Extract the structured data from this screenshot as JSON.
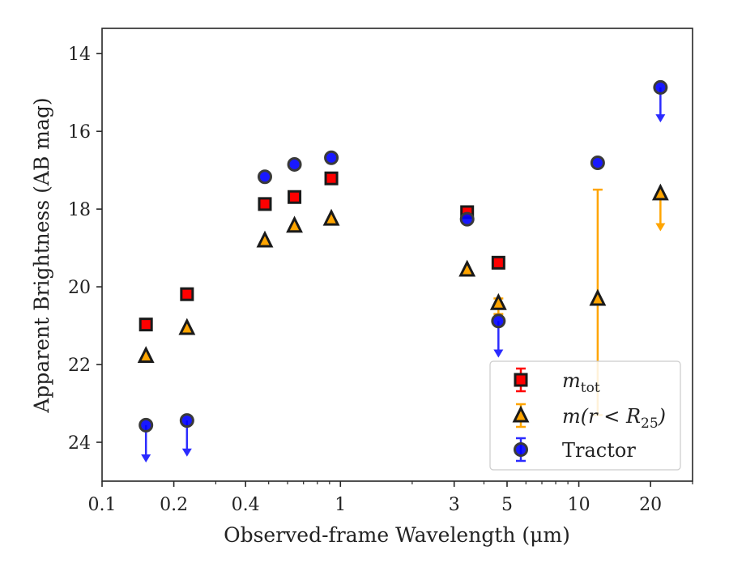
{
  "chart_data": {
    "type": "scatter",
    "xlabel": "Observed-frame Wavelength (μm)",
    "ylabel": "Apparent Brightness (AB mag)",
    "xscale": "log",
    "xlim": [
      0.1,
      30
    ],
    "ylim": [
      25.0,
      13.35
    ],
    "y_inverted": true,
    "x_ticks": [
      {
        "value": 0.1,
        "label": "0.1"
      },
      {
        "value": 0.2,
        "label": "0.2"
      },
      {
        "value": 0.4,
        "label": "0.4"
      },
      {
        "value": 1,
        "label": "1"
      },
      {
        "value": 3,
        "label": "3"
      },
      {
        "value": 5,
        "label": "5"
      },
      {
        "value": 10,
        "label": "10"
      },
      {
        "value": 20,
        "label": "20"
      }
    ],
    "y_ticks": [
      {
        "value": 14,
        "label": "14"
      },
      {
        "value": 16,
        "label": "16"
      },
      {
        "value": 18,
        "label": "18"
      },
      {
        "value": 20,
        "label": "20"
      },
      {
        "value": 22,
        "label": "22"
      },
      {
        "value": 24,
        "label": "24"
      }
    ],
    "grid": false,
    "legend_position": "bottom-right",
    "series": [
      {
        "name": "m_tot",
        "legend_main": "m",
        "legend_sub": "tot",
        "marker": "square",
        "color": "#ff0000",
        "edge_color": "#1a1a1a",
        "error_color": "#ff0000",
        "points": [
          {
            "x": 0.1528,
            "y": 20.97
          },
          {
            "x": 0.2271,
            "y": 20.19
          },
          {
            "x": 0.4819,
            "y": 17.87
          },
          {
            "x": 0.6415,
            "y": 17.69
          },
          {
            "x": 0.9158,
            "y": 17.21
          },
          {
            "x": 3.4,
            "y": 18.08
          },
          {
            "x": 4.6,
            "y": 19.38
          }
        ]
      },
      {
        "name": "m(r < R25)",
        "legend_main": "m(r < R",
        "legend_sub": "25",
        "legend_end": ")",
        "marker": "triangle",
        "color": "#ffa500",
        "edge_color": "#1a1a1a",
        "error_color": "#ffa500",
        "points": [
          {
            "x": 0.1528,
            "y": 21.78
          },
          {
            "x": 0.2271,
            "y": 21.06
          },
          {
            "x": 0.4819,
            "y": 18.81
          },
          {
            "x": 0.6415,
            "y": 18.43
          },
          {
            "x": 0.9158,
            "y": 18.25
          },
          {
            "x": 3.4,
            "y": 19.56
          },
          {
            "x": 4.6,
            "y": 20.42,
            "yerr_low": 20.3,
            "yerr_high": 20.7
          },
          {
            "x": 12.0,
            "y": 20.31,
            "yerr_low": 17.5,
            "yerr_high": 23.3
          },
          {
            "x": 22.0,
            "y": 17.6,
            "upper_limit": true,
            "limit_to": 18.55
          }
        ]
      },
      {
        "name": "Tractor",
        "legend_main": "Tractor",
        "marker": "circle",
        "color": "#0000ff",
        "edge_color": "#3a3a3a",
        "error_color": "#2b2bff",
        "points": [
          {
            "x": 0.1528,
            "y": 23.56,
            "upper_limit": true,
            "limit_to": 24.5
          },
          {
            "x": 0.2271,
            "y": 23.44,
            "upper_limit": true,
            "limit_to": 24.35
          },
          {
            "x": 0.4819,
            "y": 17.17
          },
          {
            "x": 0.6415,
            "y": 16.85
          },
          {
            "x": 0.9158,
            "y": 16.68
          },
          {
            "x": 3.4,
            "y": 18.26
          },
          {
            "x": 4.6,
            "y": 20.88,
            "upper_limit": true,
            "limit_to": 21.8
          },
          {
            "x": 12.0,
            "y": 16.81
          },
          {
            "x": 22.0,
            "y": 14.87,
            "upper_limit": true,
            "limit_to": 15.75
          }
        ]
      }
    ]
  }
}
